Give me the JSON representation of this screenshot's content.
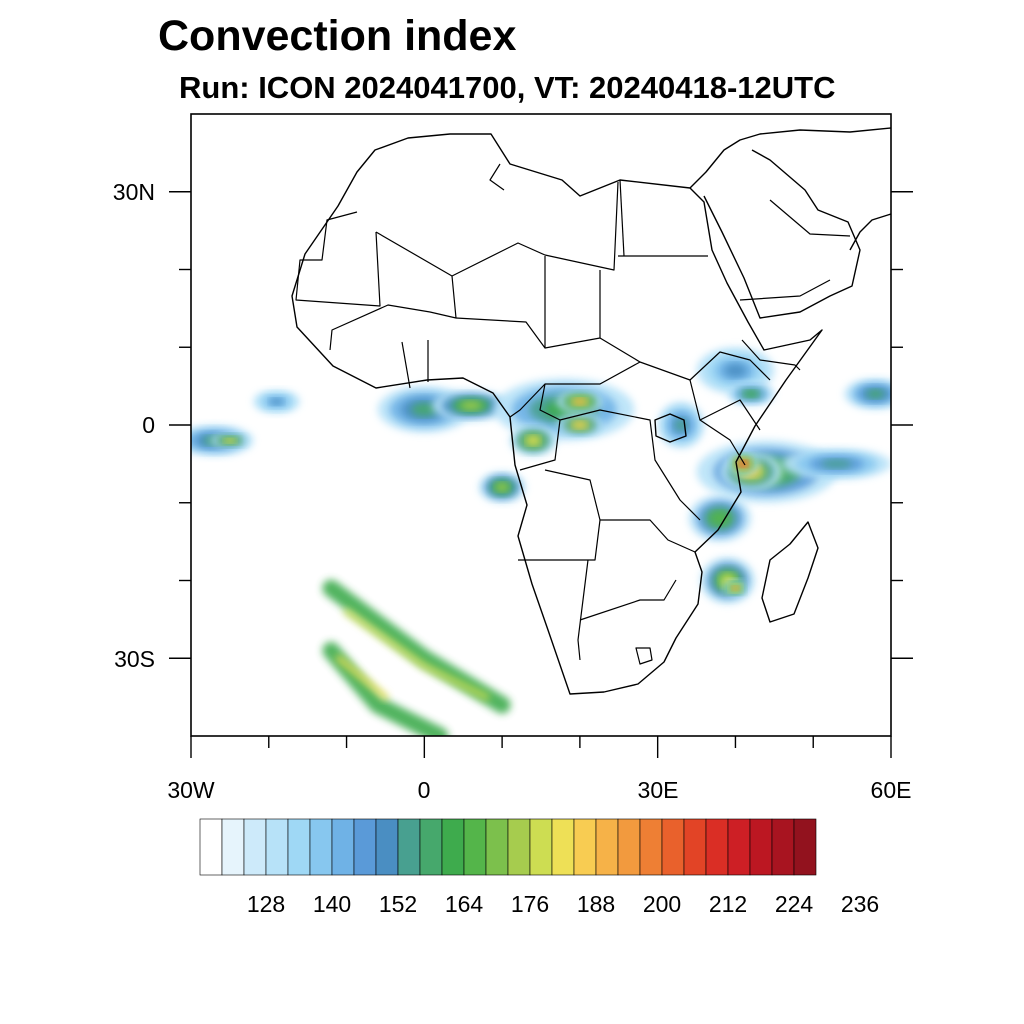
{
  "title": "Convection index",
  "subtitle": "Run: ICON 2024041700,  VT: 20240418-12UTC",
  "axes": {
    "lon_range": [
      -30,
      60
    ],
    "lat_range": [
      -40,
      40
    ],
    "lat_ticks": [
      {
        "label": "30N",
        "value": 30
      },
      {
        "label": "0",
        "value": 0
      },
      {
        "label": "30S",
        "value": -30
      }
    ],
    "lon_ticks": [
      {
        "label": "30W",
        "value": -30
      },
      {
        "label": "0",
        "value": 0
      },
      {
        "label": "30E",
        "value": 30
      },
      {
        "label": "60E",
        "value": 60
      }
    ]
  },
  "colorbar": {
    "colors": [
      "#ffffff",
      "#e6f4fc",
      "#cdeafa",
      "#b7e2f8",
      "#9fd8f5",
      "#87c7ef",
      "#6fb2e6",
      "#5a9ad8",
      "#4a8ec2",
      "#48a090",
      "#46a86c",
      "#3eab4d",
      "#54b54a",
      "#7cc04c",
      "#a6cc4e",
      "#cddd52",
      "#eee056",
      "#f8cc52",
      "#f6b248",
      "#f29a3e",
      "#ee7f34",
      "#e9612c",
      "#e24426",
      "#da2e25",
      "#cd1f25",
      "#bc1722",
      "#a81420",
      "#92121e"
    ],
    "labels": [
      "128",
      "140",
      "152",
      "164",
      "176",
      "188",
      "200",
      "212",
      "224",
      "236"
    ]
  },
  "map_fields": {
    "blobs": [
      {
        "lon": 0,
        "lat": 2,
        "rlon": 6,
        "rlat": 3,
        "level": 10
      },
      {
        "lon": 6,
        "lat": 2.5,
        "rlon": 5,
        "rlat": 2,
        "level": 14
      },
      {
        "lon": 18,
        "lat": 2,
        "rlon": 9,
        "rlat": 4,
        "level": 11
      },
      {
        "lon": 20,
        "lat": 0,
        "rlon": 3,
        "rlat": 1.5,
        "level": 17
      },
      {
        "lon": 20,
        "lat": 3,
        "rlon": 3,
        "rlat": 1.5,
        "level": 18
      },
      {
        "lon": 14,
        "lat": -2,
        "rlon": 3,
        "rlat": 2,
        "level": 16
      },
      {
        "lon": 10,
        "lat": -8,
        "rlon": 3,
        "rlat": 2,
        "level": 14
      },
      {
        "lon": -27,
        "lat": -2,
        "rlon": 5,
        "rlat": 2,
        "level": 10
      },
      {
        "lon": -25,
        "lat": -2,
        "rlon": 2.5,
        "rlat": 1,
        "level": 16
      },
      {
        "lon": -19,
        "lat": 3,
        "rlon": 3,
        "rlat": 1.5,
        "level": 8
      },
      {
        "lon": 44,
        "lat": -6,
        "rlon": 9,
        "rlat": 4,
        "level": 12
      },
      {
        "lon": 42,
        "lat": -6,
        "rlon": 4,
        "rlat": 2.5,
        "level": 17
      },
      {
        "lon": 41,
        "lat": -5,
        "rlon": 2,
        "rlat": 1.5,
        "level": 22
      },
      {
        "lon": 53,
        "lat": -5,
        "rlon": 7,
        "rlat": 2,
        "level": 9
      },
      {
        "lon": 38,
        "lat": -12,
        "rlon": 4,
        "rlat": 3,
        "level": 12
      },
      {
        "lon": 39,
        "lat": -20,
        "rlon": 3.5,
        "rlat": 3,
        "level": 15
      },
      {
        "lon": 40,
        "lat": -21,
        "rlon": 1.5,
        "rlat": 1,
        "level": 20
      },
      {
        "lon": 40,
        "lat": 7,
        "rlon": 5,
        "rlat": 3,
        "level": 8
      },
      {
        "lon": 42,
        "lat": 4,
        "rlon": 3,
        "rlat": 1.5,
        "level": 11
      },
      {
        "lon": 58,
        "lat": 4,
        "rlon": 4,
        "rlat": 2,
        "level": 10
      },
      {
        "lon": 33,
        "lat": 0,
        "rlon": 3,
        "rlat": 3,
        "level": 9
      }
    ],
    "bands": [
      {
        "points": [
          [
            -12,
            -21
          ],
          [
            0,
            -30
          ],
          [
            10,
            -36
          ]
        ],
        "width": 2.2,
        "level": 11
      },
      {
        "points": [
          [
            -10,
            -24
          ],
          [
            0,
            -31
          ],
          [
            8,
            -35
          ]
        ],
        "width": 0.8,
        "level": 15
      },
      {
        "points": [
          [
            -12,
            -29
          ],
          [
            -6,
            -36
          ],
          [
            2,
            -40
          ]
        ],
        "width": 2.2,
        "level": 11
      },
      {
        "points": [
          [
            -11,
            -30
          ],
          [
            -5,
            -35
          ]
        ],
        "width": 0.8,
        "level": 16
      }
    ]
  }
}
